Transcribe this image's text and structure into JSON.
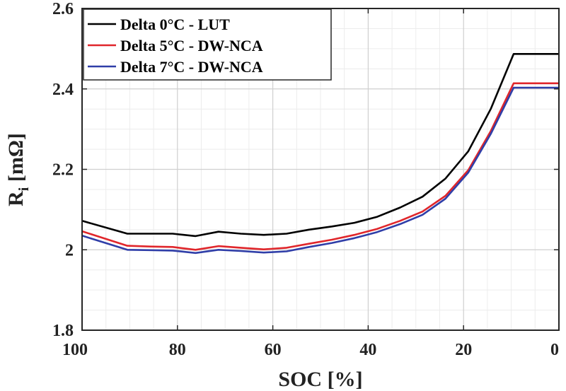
{
  "chart_data": {
    "type": "line",
    "title": "",
    "xlabel": "SOC [%]",
    "ylabel_main": "R",
    "ylabel_sub": "i",
    "ylabel_unit": " [mΩ]",
    "xlim": [
      100,
      0
    ],
    "ylim": [
      1.8,
      2.6
    ],
    "x_reversed": true,
    "grid": true,
    "legend_position": "top-left",
    "xticks": [
      100,
      80,
      60,
      40,
      20,
      0
    ],
    "xtick_labels": [
      "100",
      "80",
      "60",
      "40",
      "20",
      "0"
    ],
    "yticks": [
      1.8,
      2.0,
      2.2,
      2.4,
      2.6
    ],
    "ytick_labels": [
      "1.8",
      "2",
      "2.2",
      "2.4",
      "2.6"
    ],
    "series": [
      {
        "name": "Delta 0°C - LUT",
        "color": "#000000",
        "x": [
          100,
          90.5,
          85.7,
          81,
          76.2,
          71.4,
          66.7,
          61.9,
          57.1,
          52.4,
          47.6,
          42.9,
          38.1,
          33.3,
          28.6,
          23.8,
          19,
          14.3,
          9.5,
          0
        ],
        "y": [
          2.072,
          2.04,
          2.04,
          2.04,
          2.034,
          2.045,
          2.04,
          2.037,
          2.04,
          2.05,
          2.058,
          2.067,
          2.082,
          2.105,
          2.132,
          2.177,
          2.245,
          2.35,
          2.487,
          2.487
        ]
      },
      {
        "name": "Delta 5°C - DW-NCA",
        "color": "#e0262b",
        "x": [
          100,
          90.5,
          85.7,
          81,
          76.2,
          71.4,
          66.7,
          61.9,
          57.1,
          52.4,
          47.6,
          42.9,
          38.1,
          33.3,
          28.6,
          23.8,
          19,
          14.3,
          9.5,
          0
        ],
        "y": [
          2.046,
          2.01,
          2.008,
          2.007,
          2.0,
          2.009,
          2.005,
          2.001,
          2.005,
          2.015,
          2.025,
          2.037,
          2.052,
          2.072,
          2.095,
          2.134,
          2.198,
          2.295,
          2.414,
          2.414
        ]
      },
      {
        "name": "Delta 7°C - DW-NCA",
        "color": "#2f3ea8",
        "x": [
          100,
          90.5,
          85.7,
          81,
          76.2,
          71.4,
          66.7,
          61.9,
          57.1,
          52.4,
          47.6,
          42.9,
          38.1,
          33.3,
          28.6,
          23.8,
          19,
          14.3,
          9.5,
          0
        ],
        "y": [
          2.035,
          2.0,
          1.999,
          1.998,
          1.992,
          2.0,
          1.997,
          1.993,
          1.996,
          2.007,
          2.017,
          2.029,
          2.044,
          2.064,
          2.087,
          2.127,
          2.192,
          2.288,
          2.403,
          2.403
        ]
      }
    ]
  }
}
